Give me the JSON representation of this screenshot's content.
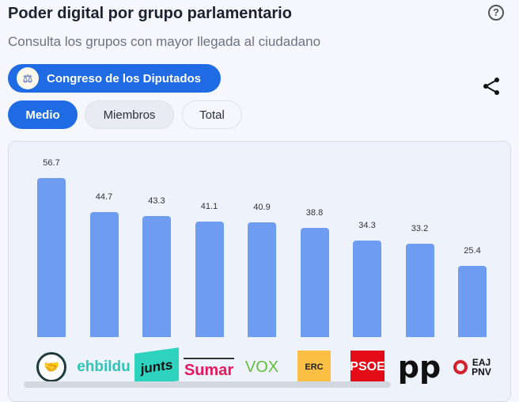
{
  "header": {
    "title": "Poder digital por grupo parlamentario",
    "subtitle": "Consulta los grupos con mayor llegada al ciudadano",
    "help_icon": "question-circle-icon",
    "share_icon": "share-icon"
  },
  "chamber": {
    "label": "Congreso de los Diputados"
  },
  "tabs": [
    {
      "label": "Medio",
      "active": true
    },
    {
      "label": "Miembros",
      "active": false
    },
    {
      "label": "Total",
      "active": false
    }
  ],
  "chart_data": {
    "type": "bar",
    "categories": [
      "Grupo Mixto",
      "EH Bildu",
      "Junts",
      "Sumar",
      "VOX",
      "ERC",
      "PSOE",
      "PP",
      "EAJ-PNV"
    ],
    "values": [
      56.7,
      44.7,
      43.3,
      41.1,
      40.9,
      38.8,
      34.3,
      33.2,
      25.4
    ],
    "bar_color": "#6e9cf0"
  },
  "logos": [
    {
      "text": ""
    },
    {
      "text": "ehbildu",
      "color": "#2ec4b6"
    },
    {
      "text": "junts",
      "color": "#111"
    },
    {
      "text": "Sumar",
      "color": "#e5185c"
    },
    {
      "text": "VOX",
      "color": "#63be3c"
    },
    {
      "text": "ERC",
      "color": "#222"
    },
    {
      "text": "PSOE",
      "color": "#fff"
    },
    {
      "text": "pp",
      "color": "#111"
    },
    {
      "text": "EAJ PNV",
      "color": "#111"
    }
  ]
}
